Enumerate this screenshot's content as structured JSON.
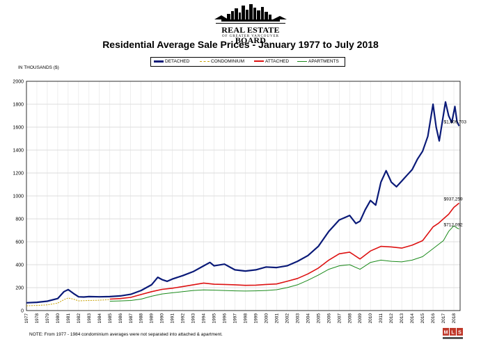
{
  "header": {
    "org_name": "REAL ESTATE BOARD",
    "org_sub": "OF GREATER VANCOUVER"
  },
  "chart_data": {
    "type": "line",
    "title": "Residential Average Sale Prices  -  January 1977 to July 2018",
    "ylabel": "IN THOUSANDS ($)",
    "xlabel": "",
    "ylim": [
      0,
      2000
    ],
    "xlim": [
      1977,
      2018.6
    ],
    "yticks": [
      0,
      200,
      400,
      600,
      800,
      1000,
      1200,
      1400,
      1600,
      1800,
      2000
    ],
    "ytick_labels": [
      "0",
      "200",
      "400",
      "600",
      "800",
      "1000",
      "1200",
      "1400",
      "1600",
      "1800",
      "2000"
    ],
    "xticks": [
      "1977",
      "1978",
      "1979",
      "1980",
      "1981",
      "1982",
      "1983",
      "1984",
      "1985",
      "1986",
      "1987",
      "1988",
      "1989",
      "1990",
      "1991",
      "1992",
      "1993",
      "1994",
      "1995",
      "1996",
      "1997",
      "1998",
      "1999",
      "2000",
      "2001",
      "2002",
      "2003",
      "2004",
      "2005",
      "2006",
      "2007",
      "2008",
      "2009",
      "2010",
      "2011",
      "2012",
      "2013",
      "2014",
      "2015",
      "2016",
      "2017",
      "2018"
    ],
    "grid": true,
    "legend_position": "top",
    "series": [
      {
        "name": "DETACHED",
        "color": "#0a1a78",
        "style": "solid",
        "x": [
          1977,
          1978,
          1979,
          1980,
          1980.6,
          1981,
          1981.5,
          1982,
          1982.5,
          1983,
          1984,
          1985,
          1986,
          1987,
          1988,
          1989,
          1989.6,
          1990,
          1990.5,
          1991,
          1992,
          1993,
          1994,
          1994.6,
          1995,
          1996,
          1996.6,
          1997,
          1998,
          1999,
          2000,
          2001,
          2002,
          2003,
          2004,
          2005,
          2006,
          2007,
          2007.5,
          2008,
          2008.6,
          2009,
          2009.5,
          2010,
          2010.5,
          2011,
          2011.5,
          2012,
          2012.5,
          2013,
          2013.5,
          2014,
          2014.5,
          2015,
          2015.5,
          2016,
          2016.3,
          2016.6,
          2016.9,
          2017.2,
          2017.5,
          2017.8,
          2018.1,
          2018.3,
          2018.5
        ],
        "values": [
          68,
          72,
          82,
          105,
          165,
          183,
          150,
          120,
          118,
          122,
          120,
          122,
          128,
          142,
          175,
          225,
          290,
          270,
          255,
          275,
          305,
          340,
          390,
          420,
          390,
          405,
          375,
          355,
          345,
          355,
          380,
          375,
          390,
          430,
          480,
          560,
          690,
          790,
          810,
          830,
          760,
          780,
          880,
          960,
          920,
          1120,
          1220,
          1120,
          1080,
          1130,
          1180,
          1230,
          1320,
          1390,
          1520,
          1800,
          1600,
          1480,
          1650,
          1820,
          1700,
          1640,
          1780,
          1650,
          1610
        ]
      },
      {
        "name": "CONDOMINIUM",
        "color": "#c8a000",
        "style": "dashed",
        "x": [
          1977,
          1978,
          1979,
          1980,
          1980.6,
          1981,
          1981.5,
          1982,
          1983,
          1984,
          1984.9
        ],
        "values": [
          42,
          45,
          50,
          65,
          95,
          110,
          100,
          85,
          88,
          90,
          95
        ]
      },
      {
        "name": "ATTACHED",
        "color": "#dd1111",
        "style": "solid",
        "x": [
          1985,
          1986,
          1987,
          1988,
          1989,
          1990,
          1991,
          1992,
          1993,
          1994,
          1995,
          1996,
          1997,
          1998,
          1999,
          2000,
          2001,
          2002,
          2003,
          2004,
          2005,
          2006,
          2007,
          2008,
          2009,
          2010,
          2011,
          2012,
          2013,
          2014,
          2015,
          2016,
          2016.5,
          2017,
          2017.5,
          2018,
          2018.5
        ],
        "values": [
          100,
          105,
          115,
          140,
          165,
          185,
          195,
          210,
          225,
          240,
          230,
          228,
          225,
          220,
          222,
          228,
          232,
          255,
          280,
          320,
          370,
          440,
          495,
          510,
          450,
          520,
          560,
          555,
          545,
          570,
          610,
          730,
          760,
          800,
          840,
          900,
          937
        ]
      },
      {
        "name": "APARTMENTS",
        "color": "#1a8a1a",
        "style": "solid",
        "x": [
          1985,
          1986,
          1987,
          1988,
          1989,
          1990,
          1991,
          1992,
          1993,
          1994,
          1995,
          1996,
          1997,
          1998,
          1999,
          2000,
          2001,
          2002,
          2003,
          2004,
          2005,
          2006,
          2007,
          2008,
          2009,
          2010,
          2011,
          2012,
          2013,
          2014,
          2015,
          2016,
          2017,
          2017.5,
          2018,
          2018.3,
          2018.5
        ],
        "values": [
          82,
          84,
          88,
          100,
          125,
          145,
          155,
          165,
          175,
          180,
          178,
          175,
          172,
          170,
          172,
          175,
          182,
          200,
          225,
          265,
          310,
          360,
          390,
          400,
          360,
          420,
          440,
          430,
          425,
          440,
          470,
          540,
          610,
          690,
          740,
          720,
          712
        ]
      }
    ],
    "annotations": [
      {
        "text": "$1,609,703",
        "x": 2018.5,
        "y": 1610
      },
      {
        "text": "$937,259",
        "x": 2018.5,
        "y": 937
      },
      {
        "text": "$712,092",
        "x": 2018.5,
        "y": 712
      }
    ],
    "note": "NOTE:  From 1977 - 1984 condominium averages were not separated into attached & apartment."
  },
  "mls_logo_text": "MLS"
}
